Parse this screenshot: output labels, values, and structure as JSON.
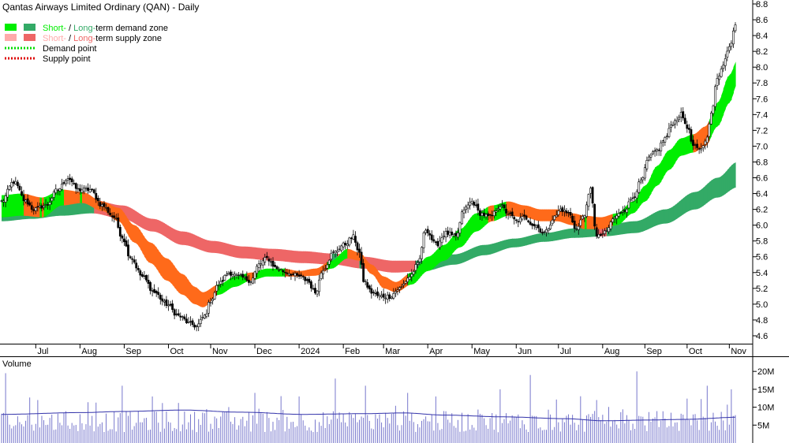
{
  "chart_data": {
    "type": "candlestick",
    "title": "Qantas Airways Limited Ordinary (QAN) - Daily",
    "legend": {
      "placement": "top-left",
      "entries": [
        {
          "id": "demand-zone",
          "prefix": "",
          "short": "Short-",
          "sep": " / ",
          "long": "Long-",
          "suffix": "term demand zone",
          "short_color": "#00ee00",
          "long_color": "#33aa66"
        },
        {
          "id": "supply-zone",
          "prefix": "",
          "short": "Short-",
          "sep": " / ",
          "long": "Long-",
          "suffix": "term supply zone",
          "short_color": "#ffaaaa",
          "long_color": "#ee6666"
        },
        {
          "id": "demand-point",
          "label": "Demand point",
          "color": "#00dd00"
        },
        {
          "id": "supply-point",
          "label": "Supply point",
          "color": "#dd0000"
        }
      ]
    },
    "x_labels": [
      "Jul",
      "Aug",
      "Sep",
      "Oct",
      "Nov",
      "Dec",
      "2024",
      "Feb",
      "Mar",
      "Apr",
      "May",
      "Jun",
      "Jul",
      "Aug",
      "Sep",
      "Oct",
      "Nov"
    ],
    "x_label_bars": [
      17,
      39,
      61,
      83,
      104,
      126,
      148,
      170,
      190,
      212,
      234,
      256,
      277,
      299,
      320,
      341,
      362
    ],
    "y_ticks": [
      4.6,
      4.8,
      5.0,
      5.2,
      5.4,
      5.6,
      5.8,
      6.0,
      6.2,
      6.4,
      6.6,
      6.8,
      7.0,
      7.2,
      7.4,
      7.6,
      7.8,
      8.0,
      8.2,
      8.4,
      8.6,
      8.8
    ],
    "y_tick_labels": [
      "4.6",
      "4.8",
      "5.0",
      "5.2",
      "5.4",
      "5.6",
      "5.8",
      "6.0",
      "6.2",
      "6.4",
      "6.6",
      "6.8",
      "7.0",
      "7.2",
      "7.4",
      "7.6",
      "7.8",
      "8.0",
      "8.2",
      "8.4",
      "8.6",
      "8.8"
    ],
    "ylim": [
      4.5,
      8.85
    ],
    "bar_count": 366,
    "price_anchors": [
      [
        0,
        6.3
      ],
      [
        6,
        6.55
      ],
      [
        12,
        6.3
      ],
      [
        16,
        6.2
      ],
      [
        22,
        6.25
      ],
      [
        28,
        6.45
      ],
      [
        33,
        6.6
      ],
      [
        38,
        6.45
      ],
      [
        44,
        6.45
      ],
      [
        50,
        6.25
      ],
      [
        56,
        6.1
      ],
      [
        60,
        5.85
      ],
      [
        64,
        5.6
      ],
      [
        70,
        5.35
      ],
      [
        76,
        5.15
      ],
      [
        82,
        5.0
      ],
      [
        88,
        4.85
      ],
      [
        94,
        4.75
      ],
      [
        97,
        4.72
      ],
      [
        101,
        4.85
      ],
      [
        104,
        5.05
      ],
      [
        108,
        5.25
      ],
      [
        113,
        5.4
      ],
      [
        118,
        5.35
      ],
      [
        124,
        5.3
      ],
      [
        128,
        5.5
      ],
      [
        132,
        5.58
      ],
      [
        137,
        5.45
      ],
      [
        142,
        5.4
      ],
      [
        148,
        5.35
      ],
      [
        152,
        5.3
      ],
      [
        156,
        5.15
      ],
      [
        160,
        5.45
      ],
      [
        165,
        5.65
      ],
      [
        170,
        5.75
      ],
      [
        175,
        5.85
      ],
      [
        178,
        5.65
      ],
      [
        180,
        5.3
      ],
      [
        184,
        5.15
      ],
      [
        188,
        5.1
      ],
      [
        193,
        5.1
      ],
      [
        198,
        5.2
      ],
      [
        203,
        5.35
      ],
      [
        207,
        5.5
      ],
      [
        211,
        5.95
      ],
      [
        216,
        5.75
      ],
      [
        221,
        5.9
      ],
      [
        226,
        5.85
      ],
      [
        230,
        6.2
      ],
      [
        234,
        6.3
      ],
      [
        238,
        6.15
      ],
      [
        243,
        6.1
      ],
      [
        248,
        6.25
      ],
      [
        252,
        6.15
      ],
      [
        256,
        6.05
      ],
      [
        260,
        6.1
      ],
      [
        265,
        6.0
      ],
      [
        270,
        5.9
      ],
      [
        275,
        6.1
      ],
      [
        278,
        6.2
      ],
      [
        282,
        6.15
      ],
      [
        286,
        5.95
      ],
      [
        290,
        6.15
      ],
      [
        293,
        6.45
      ],
      [
        296,
        5.85
      ],
      [
        300,
        5.9
      ],
      [
        305,
        6.1
      ],
      [
        310,
        6.2
      ],
      [
        314,
        6.35
      ],
      [
        318,
        6.55
      ],
      [
        322,
        6.85
      ],
      [
        326,
        6.95
      ],
      [
        330,
        7.1
      ],
      [
        334,
        7.3
      ],
      [
        338,
        7.4
      ],
      [
        341,
        7.25
      ],
      [
        344,
        7.0
      ],
      [
        347,
        6.95
      ],
      [
        350,
        7.05
      ],
      [
        353,
        7.4
      ],
      [
        356,
        7.85
      ],
      [
        359,
        8.05
      ],
      [
        362,
        8.25
      ],
      [
        365,
        8.55
      ]
    ],
    "short_zone": {
      "upper": [
        [
          0,
          6.38
        ],
        [
          10,
          6.4
        ],
        [
          20,
          6.35
        ],
        [
          30,
          6.45
        ],
        [
          40,
          6.42
        ],
        [
          50,
          6.3
        ],
        [
          58,
          6.22
        ],
        [
          66,
          6.0
        ],
        [
          74,
          5.78
        ],
        [
          82,
          5.58
        ],
        [
          90,
          5.38
        ],
        [
          96,
          5.22
        ],
        [
          100,
          5.15
        ],
        [
          108,
          5.25
        ],
        [
          116,
          5.35
        ],
        [
          124,
          5.4
        ],
        [
          132,
          5.45
        ],
        [
          140,
          5.45
        ],
        [
          148,
          5.42
        ],
        [
          156,
          5.45
        ],
        [
          164,
          5.55
        ],
        [
          172,
          5.7
        ],
        [
          178,
          5.65
        ],
        [
          184,
          5.5
        ],
        [
          190,
          5.35
        ],
        [
          196,
          5.28
        ],
        [
          204,
          5.4
        ],
        [
          212,
          5.6
        ],
        [
          220,
          5.75
        ],
        [
          228,
          5.95
        ],
        [
          236,
          6.15
        ],
        [
          244,
          6.25
        ],
        [
          252,
          6.3
        ],
        [
          260,
          6.25
        ],
        [
          268,
          6.2
        ],
        [
          276,
          6.2
        ],
        [
          284,
          6.15
        ],
        [
          290,
          6.12
        ],
        [
          298,
          6.1
        ],
        [
          306,
          6.15
        ],
        [
          314,
          6.3
        ],
        [
          320,
          6.5
        ],
        [
          326,
          6.75
        ],
        [
          332,
          6.95
        ],
        [
          338,
          7.1
        ],
        [
          344,
          7.15
        ],
        [
          350,
          7.25
        ],
        [
          356,
          7.55
        ],
        [
          362,
          7.9
        ],
        [
          366,
          8.1
        ]
      ],
      "lower": [
        [
          0,
          6.1
        ],
        [
          10,
          6.12
        ],
        [
          20,
          6.1
        ],
        [
          30,
          6.25
        ],
        [
          40,
          6.28
        ],
        [
          50,
          6.18
        ],
        [
          58,
          6.05
        ],
        [
          66,
          5.78
        ],
        [
          74,
          5.52
        ],
        [
          82,
          5.3
        ],
        [
          90,
          5.12
        ],
        [
          96,
          5.0
        ],
        [
          100,
          4.96
        ],
        [
          108,
          5.12
        ],
        [
          116,
          5.22
        ],
        [
          124,
          5.3
        ],
        [
          132,
          5.35
        ],
        [
          140,
          5.35
        ],
        [
          148,
          5.35
        ],
        [
          156,
          5.36
        ],
        [
          164,
          5.45
        ],
        [
          172,
          5.58
        ],
        [
          178,
          5.55
        ],
        [
          184,
          5.38
        ],
        [
          190,
          5.2
        ],
        [
          196,
          5.15
        ],
        [
          204,
          5.25
        ],
        [
          212,
          5.42
        ],
        [
          220,
          5.55
        ],
        [
          228,
          5.72
        ],
        [
          236,
          5.92
        ],
        [
          244,
          6.05
        ],
        [
          252,
          6.12
        ],
        [
          260,
          6.1
        ],
        [
          268,
          6.05
        ],
        [
          276,
          6.05
        ],
        [
          284,
          6.0
        ],
        [
          290,
          5.95
        ],
        [
          298,
          5.95
        ],
        [
          306,
          6.0
        ],
        [
          314,
          6.15
        ],
        [
          320,
          6.3
        ],
        [
          326,
          6.5
        ],
        [
          332,
          6.7
        ],
        [
          338,
          6.88
        ],
        [
          344,
          6.92
        ],
        [
          350,
          7.0
        ],
        [
          356,
          7.25
        ],
        [
          362,
          7.55
        ],
        [
          366,
          7.8
        ]
      ]
    },
    "long_zone": {
      "upper": [
        [
          0,
          6.25
        ],
        [
          15,
          6.28
        ],
        [
          30,
          6.32
        ],
        [
          45,
          6.32
        ],
        [
          60,
          6.25
        ],
        [
          75,
          6.08
        ],
        [
          90,
          5.92
        ],
        [
          105,
          5.8
        ],
        [
          120,
          5.73
        ],
        [
          135,
          5.7
        ],
        [
          150,
          5.67
        ],
        [
          165,
          5.64
        ],
        [
          180,
          5.6
        ],
        [
          195,
          5.55
        ],
        [
          210,
          5.55
        ],
        [
          225,
          5.63
        ],
        [
          240,
          5.75
        ],
        [
          255,
          5.83
        ],
        [
          270,
          5.9
        ],
        [
          285,
          5.96
        ],
        [
          300,
          6.0
        ],
        [
          315,
          6.05
        ],
        [
          330,
          6.2
        ],
        [
          345,
          6.42
        ],
        [
          356,
          6.6
        ],
        [
          366,
          6.8
        ]
      ],
      "lower": [
        [
          0,
          6.05
        ],
        [
          15,
          6.08
        ],
        [
          30,
          6.12
        ],
        [
          45,
          6.15
        ],
        [
          60,
          6.08
        ],
        [
          75,
          5.92
        ],
        [
          90,
          5.75
        ],
        [
          105,
          5.65
        ],
        [
          120,
          5.58
        ],
        [
          135,
          5.55
        ],
        [
          150,
          5.52
        ],
        [
          165,
          5.5
        ],
        [
          180,
          5.45
        ],
        [
          195,
          5.4
        ],
        [
          210,
          5.42
        ],
        [
          225,
          5.5
        ],
        [
          240,
          5.62
        ],
        [
          255,
          5.72
        ],
        [
          270,
          5.79
        ],
        [
          285,
          5.84
        ],
        [
          300,
          5.86
        ],
        [
          315,
          5.9
        ],
        [
          330,
          6.02
        ],
        [
          345,
          6.2
        ],
        [
          356,
          6.35
        ],
        [
          366,
          6.48
        ]
      ]
    },
    "volume": {
      "label": "Volume",
      "y_ticks": [
        5,
        10,
        15,
        20
      ],
      "y_tick_labels": [
        "5M",
        "10M",
        "15M",
        "20M"
      ],
      "ylim": [
        0,
        24
      ],
      "ma_anchors": [
        [
          0,
          8.0
        ],
        [
          40,
          8.5
        ],
        [
          60,
          8.8
        ],
        [
          90,
          9.2
        ],
        [
          120,
          8.6
        ],
        [
          150,
          8.0
        ],
        [
          180,
          8.2
        ],
        [
          200,
          8.4
        ],
        [
          220,
          7.8
        ],
        [
          250,
          7.3
        ],
        [
          280,
          6.8
        ],
        [
          300,
          6.2
        ],
        [
          320,
          6.4
        ],
        [
          340,
          6.6
        ],
        [
          366,
          7.2
        ]
      ],
      "spikes": [
        [
          2,
          19.5
        ],
        [
          18,
          12
        ],
        [
          60,
          16
        ],
        [
          75,
          13
        ],
        [
          126,
          14
        ],
        [
          148,
          13
        ],
        [
          166,
          18
        ],
        [
          181,
          16
        ],
        [
          202,
          14
        ],
        [
          216,
          13
        ],
        [
          248,
          15
        ],
        [
          263,
          19
        ],
        [
          296,
          12
        ],
        [
          316,
          20
        ],
        [
          351,
          16
        ],
        [
          363,
          15
        ]
      ]
    },
    "colors": {
      "short_demand": "#00ee00",
      "long_demand": "#33aa66",
      "short_supply": "#ffaaaa",
      "long_supply": "#ee6666",
      "short_supply_active": "#ff6a1a",
      "candle": "#000000",
      "volume_bar": "#7777cc",
      "volume_ma": "#3333aa",
      "volume_label": "#5522aa"
    }
  }
}
